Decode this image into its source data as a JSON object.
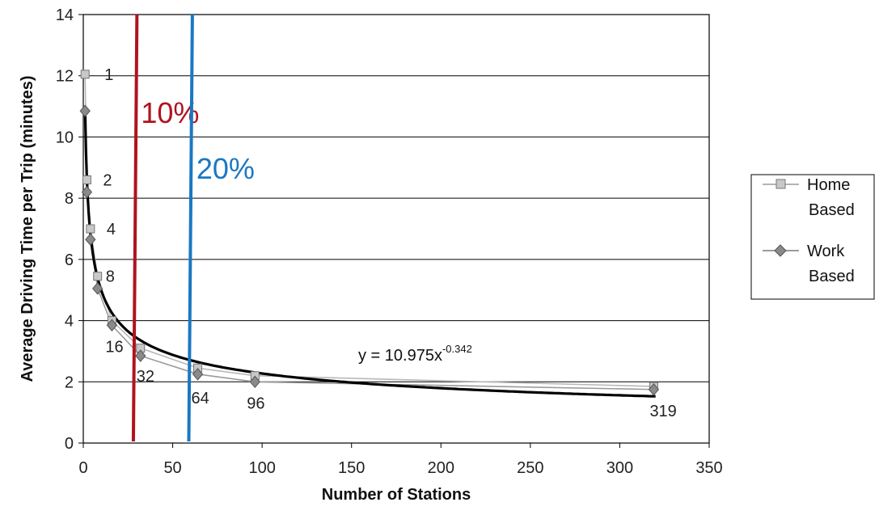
{
  "chart_data": {
    "type": "scatter",
    "title": "",
    "xlabel": "Number of Stations",
    "ylabel": "Average Driving Time per Trip (minutes)",
    "xlim": [
      0,
      350
    ],
    "ylim": [
      0,
      14
    ],
    "xticks": [
      0,
      50,
      100,
      150,
      200,
      250,
      300,
      350
    ],
    "yticks": [
      0,
      2,
      4,
      6,
      8,
      10,
      12,
      14
    ],
    "grid": "horizontal",
    "legend_position": "right",
    "series": [
      {
        "name": "Home Based",
        "marker": "square",
        "color": "#9a9a9a",
        "x": [
          1,
          2,
          4,
          8,
          16,
          32,
          64,
          96,
          319
        ],
        "y": [
          12.05,
          8.6,
          7.0,
          5.45,
          4.0,
          3.1,
          2.45,
          2.2,
          1.85
        ]
      },
      {
        "name": "Work Based",
        "marker": "diamond",
        "color": "#7a7a7a",
        "x": [
          1,
          2,
          4,
          8,
          16,
          32,
          64,
          96,
          319
        ],
        "y": [
          10.85,
          8.2,
          6.65,
          5.05,
          3.85,
          2.85,
          2.25,
          2.0,
          1.75
        ]
      }
    ],
    "point_labels": [
      {
        "text": "1",
        "x": 1,
        "y": 12.05
      },
      {
        "text": "2",
        "x": 2,
        "y": 8.6
      },
      {
        "text": "4",
        "x": 4,
        "y": 7.0
      },
      {
        "text": "8",
        "x": 8,
        "y": 5.45
      },
      {
        "text": "16",
        "x": 16,
        "y": 3.85
      },
      {
        "text": "32",
        "x": 32,
        "y": 2.85
      },
      {
        "text": "64",
        "x": 64,
        "y": 2.25
      },
      {
        "text": "96",
        "x": 96,
        "y": 2.0
      },
      {
        "text": "319",
        "x": 319,
        "y": 1.75
      }
    ],
    "trendline": {
      "equation_base": "y = 10.975x",
      "equation_exponent": "-0.342",
      "coefficient": 10.975,
      "exponent": -0.342,
      "color": "#000000"
    },
    "vertical_markers": [
      {
        "label": "10%",
        "x_bottom": 28,
        "x_top": 30,
        "color": "#b0131e"
      },
      {
        "label": "20%",
        "x_bottom": 59,
        "x_top": 61,
        "color": "#1a78c2"
      }
    ]
  }
}
